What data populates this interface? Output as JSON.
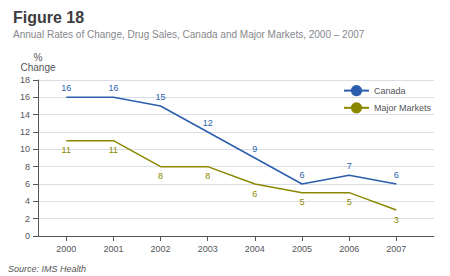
{
  "chart_data": {
    "type": "line",
    "title": "Figure 18",
    "subtitle": "Annual Rates of Change, Drug Sales, Canada and Major Markets, 2000 – 2007",
    "ylabel": "%\nChange",
    "source": "Source: IMS Health",
    "x": [
      2000,
      2001,
      2002,
      2003,
      2004,
      2005,
      2006,
      2007
    ],
    "series": [
      {
        "name": "Canada",
        "color": "#2b5fad",
        "values": [
          16,
          16,
          15,
          12,
          9,
          6,
          7,
          6
        ]
      },
      {
        "name": "Major Markets",
        "color": "#8b8800",
        "values": [
          11,
          11,
          8,
          8,
          6,
          5,
          5,
          3
        ]
      }
    ],
    "xlim": [
      1999.4,
      2007.8
    ],
    "xticks": [
      2000,
      2001,
      2002,
      2003,
      2004,
      2005,
      2006,
      2007
    ],
    "ylim": [
      0,
      18
    ],
    "yticks": [
      0,
      2,
      4,
      6,
      8,
      10,
      12,
      14,
      16,
      18
    ],
    "grid": true,
    "legend": "upper right",
    "data_labels": true
  }
}
